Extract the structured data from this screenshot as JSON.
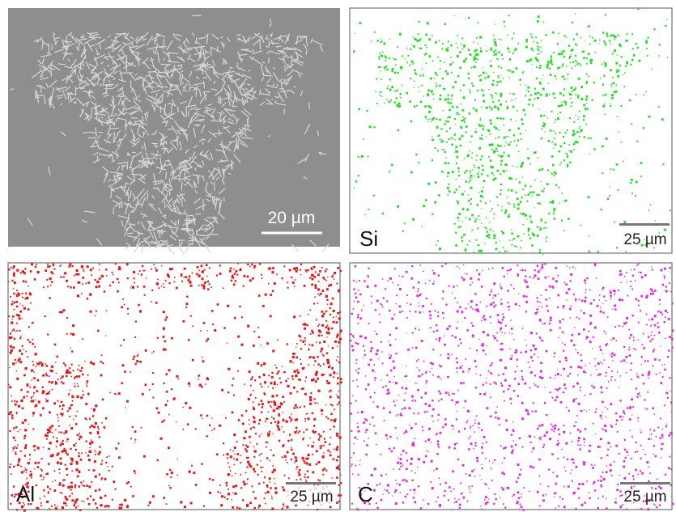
{
  "panels": [
    {
      "scale_bar": "20 µm"
    },
    {
      "label": "Si",
      "scale_bar": "25 µm"
    },
    {
      "label": "Al",
      "scale_bar": "25 µm"
    },
    {
      "label": "C",
      "scale_bar": "25 µm"
    }
  ]
}
